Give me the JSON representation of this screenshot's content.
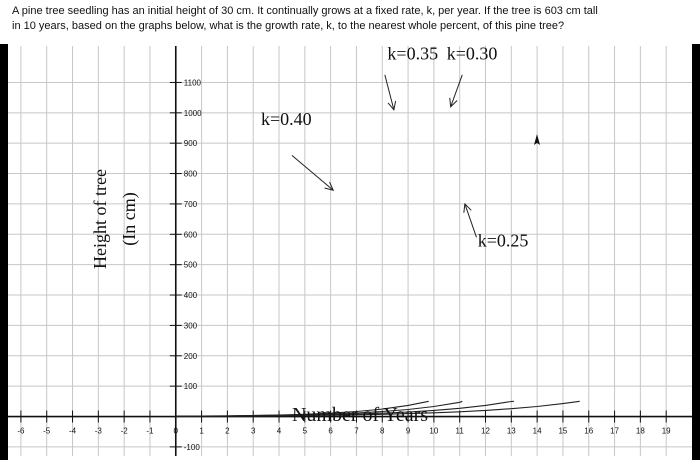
{
  "question": {
    "line1": "A pine tree seedling has an initial height of 30 cm. It continually grows at a fixed rate, k, per year. If the tree is 603 cm tall",
    "line2": "in 10 years, based on the graphs below, what is the growth rate, k, to the nearest whole percent, of this pine tree?"
  },
  "chart_data": {
    "type": "line",
    "title": "",
    "xlabel": "Number of Years",
    "ylabel_lines": [
      "Height of tree",
      "(In cm)"
    ],
    "xlim": [
      -6.5,
      20
    ],
    "ylim": [
      -130,
      1220
    ],
    "x_ticks": [
      -6,
      -5,
      -4,
      -3,
      -2,
      -1,
      0,
      1,
      2,
      3,
      4,
      5,
      6,
      7,
      8,
      9,
      10,
      11,
      12,
      13,
      14,
      15,
      16,
      17,
      18,
      19
    ],
    "x_tick_labels": [
      "-6",
      "-5",
      "-4",
      "-3",
      "-2",
      "-1",
      "0",
      "1",
      "2",
      "3",
      "4",
      "5",
      "6",
      "7",
      "8",
      "9",
      "10",
      "11",
      "12",
      "13",
      "14",
      "15",
      "16",
      "17",
      "18",
      "19"
    ],
    "y_ticks": [
      -100,
      100,
      200,
      300,
      400,
      500,
      600,
      700,
      800,
      900,
      1000,
      1100
    ],
    "y_tick_labels": [
      "-100",
      "100",
      "200",
      "300",
      "400",
      "500",
      "600",
      "700",
      "800",
      "900",
      "1000",
      "1100"
    ],
    "grid": true,
    "series": [
      {
        "k": 0.4,
        "x": [
          0,
          1,
          2,
          3,
          4,
          5,
          6,
          7,
          8,
          9,
          9.8
        ],
        "y": [
          1,
          1.5,
          2.2,
          3.3,
          5,
          7.4,
          11,
          16.4,
          24.5,
          36.6,
          50
        ]
      },
      {
        "k": 0.35,
        "x": [
          0,
          1,
          2,
          3,
          4,
          5,
          6,
          7,
          8,
          9,
          10,
          11,
          11.1
        ],
        "y": [
          1,
          1.4,
          2,
          2.9,
          4.1,
          5.8,
          8.2,
          11.6,
          16.4,
          23.1,
          33.1,
          46.9,
          50
        ]
      },
      {
        "k": 0.3,
        "x": [
          0,
          1,
          2,
          3,
          4,
          5,
          6,
          7,
          8,
          9,
          10,
          11,
          12,
          13,
          13.1
        ],
        "y": [
          1,
          1.3,
          1.8,
          2.5,
          3.3,
          4.5,
          6,
          8.2,
          11,
          14.9,
          20.1,
          27.1,
          36.6,
          49.4,
          50
        ]
      },
      {
        "k": 0.25,
        "x": [
          0,
          1,
          2,
          3,
          4,
          5,
          6,
          7,
          8,
          9,
          10,
          11,
          12,
          13,
          14,
          15,
          15.65
        ],
        "y": [
          1,
          1.3,
          1.6,
          2.1,
          2.7,
          3.5,
          4.5,
          5.8,
          7.4,
          9.5,
          12.2,
          15.6,
          20.1,
          25.8,
          33.1,
          42.5,
          50
        ]
      }
    ],
    "annotations": [
      {
        "text": "k=0.35",
        "x": 8.2,
        "y": 1175
      },
      {
        "text": "k=0.30",
        "x": 10.5,
        "y": 1175
      },
      {
        "text": "k=0.40",
        "x": 3.3,
        "y": 960
      },
      {
        "text": "k=0.25",
        "x": 11.7,
        "y": 560
      }
    ],
    "arrows": [
      {
        "from": [
          8.1,
          1125
        ],
        "to": [
          8.45,
          1010
        ]
      },
      {
        "from": [
          11.1,
          1125
        ],
        "to": [
          10.65,
          1020
        ]
      },
      {
        "from": [
          4.5,
          860
        ],
        "to": [
          6.1,
          745
        ]
      },
      {
        "from": [
          11.65,
          590
        ],
        "to": [
          11.2,
          700
        ]
      }
    ]
  }
}
